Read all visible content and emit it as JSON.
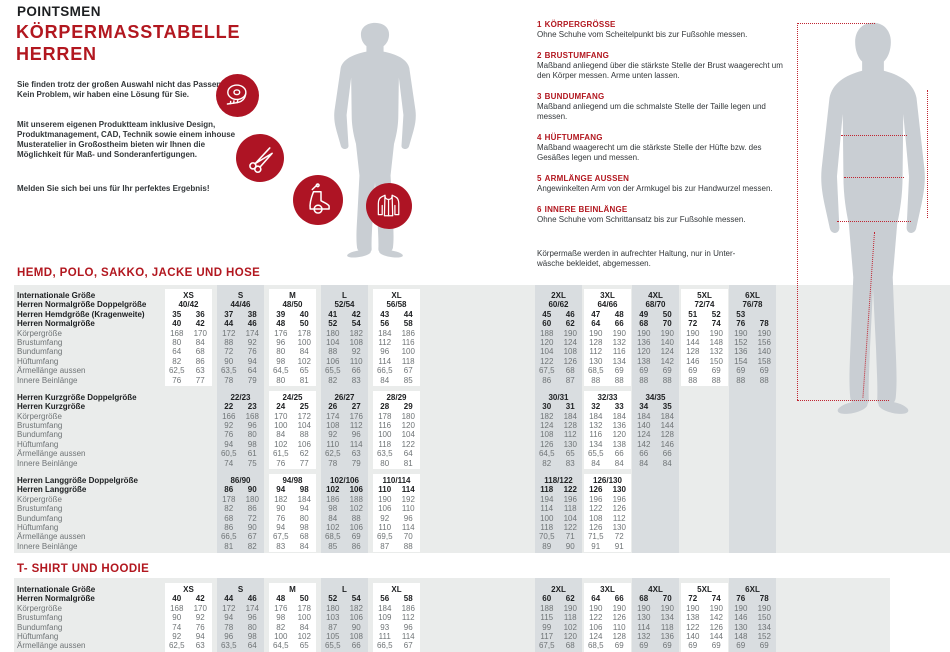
{
  "colors": {
    "accent_red": "#b2171f",
    "circle_red": "#ae1424",
    "table_bg": "#eaeceb",
    "band_shaded": "#d9dde0",
    "band_white": "#ffffff",
    "silhouette_gray": "#c9ced3",
    "text_dark": "#1d1f21",
    "text_gray": "#6f7476"
  },
  "header": {
    "brand": "POINTSMEN",
    "title_line1": "KÖRPERMASSTABELLE",
    "title_line2": "HERREN",
    "intro": [
      "Sie finden trotz der großen Auswahl nicht das Passende? Kein Problem, wir haben eine Lösung für Sie.",
      "Mit unserem eigenen Produktteam inklusive Design, Produktmanagement, CAD, Technik sowie einem inhouse Musteratelier in Großostheim bieten wir Ihnen die Möglichkeit für Maß- und Sonderanfertigungen.",
      "Melden Sie sich bei uns für Ihr perfektes Ergebnis!"
    ],
    "icons": [
      "tape-measure",
      "scissors",
      "custom-shoe",
      "jacket"
    ]
  },
  "instructions": [
    {
      "num": "1",
      "title": "KÖRPERGRÖSSE",
      "text": "Ohne Schuhe vom Scheitelpunkt bis zur Fußsohle messen."
    },
    {
      "num": "2",
      "title": "BRUSTUMFANG",
      "text": "Maßband anliegend über die stärkste Stelle der Brust waagerecht um den Körper messen. Arme unten lassen."
    },
    {
      "num": "3",
      "title": "BUNDUMFANG",
      "text": "Maßband anliegend um die schmalste Stelle der Taille legen und messen."
    },
    {
      "num": "4",
      "title": "HÜFTUMFANG",
      "text": "Maßband waagerecht um die stärkste Stelle der Hüfte bzw. des Gesäßes legen und messen."
    },
    {
      "num": "5",
      "title": "ARMLÄNGE AUSSEN",
      "text": "Angewinkelten Arm von der Armkugel bis zur Handwurzel messen."
    },
    {
      "num": "6",
      "title": "INNERE BEINLÄNGE",
      "text": "Ohne Schuhe vom Schrittansatz bis zur Fußsohle messen."
    }
  ],
  "footnote_line1": "Körpermaße werden in aufrechter Haltung, nur in Unter-",
  "footnote_line2": "wäsche bekleidet, abgemessen.",
  "figure": {
    "markers": [
      "1",
      "2",
      "3",
      "4",
      "5",
      "6"
    ]
  },
  "tables": [
    {
      "title": "HEMD, POLO, SAKKO, JACKE UND HOSE",
      "blocks": [
        {
          "rows": [
            {
              "label": "Internationale Größe",
              "b": 1,
              "t": "g",
              "v": [
                "XS",
                "S",
                "M",
                "L",
                "XL",
                "2XL",
                "3XL",
                "4XL",
                "5XL",
                "6XL"
              ]
            },
            {
              "label": "Herren Normalgröße Doppelgröße",
              "b": 1,
              "t": "g",
              "v": [
                "40/42",
                "44/46",
                "48/50",
                "52/54",
                "56/58",
                "60/62",
                "64/66",
                "68/70",
                "72/74",
                "76/78"
              ]
            },
            {
              "label": "Herren Hemdgröße (Kragenweite)",
              "b": 1,
              "t": "p",
              "v": [
                "35",
                "36",
                "37",
                "38",
                "39",
                "40",
                "41",
                "42",
                "43",
                "44",
                "45",
                "46",
                "47",
                "48",
                "49",
                "50",
                "51",
                "52",
                "53",
                ""
              ]
            },
            {
              "label": "Herren Normalgröße",
              "b": 1,
              "t": "p",
              "v": [
                "40",
                "42",
                "44",
                "46",
                "48",
                "50",
                "52",
                "54",
                "56",
                "58",
                "60",
                "62",
                "64",
                "66",
                "68",
                "70",
                "72",
                "74",
                "76",
                "78"
              ]
            },
            {
              "label": "Körpergröße",
              "t": "p",
              "v": [
                "168",
                "170",
                "172",
                "174",
                "176",
                "178",
                "180",
                "182",
                "184",
                "186",
                "188",
                "190",
                "190",
                "190",
                "190",
                "190",
                "190",
                "190",
                "190",
                "190"
              ]
            },
            {
              "label": "Brustumfang",
              "t": "p",
              "v": [
                "80",
                "84",
                "88",
                "92",
                "96",
                "100",
                "104",
                "108",
                "112",
                "116",
                "120",
                "124",
                "128",
                "132",
                "136",
                "140",
                "144",
                "148",
                "152",
                "156"
              ]
            },
            {
              "label": "Bundumfang",
              "t": "p",
              "v": [
                "64",
                "68",
                "72",
                "76",
                "80",
                "84",
                "88",
                "92",
                "96",
                "100",
                "104",
                "108",
                "112",
                "116",
                "120",
                "124",
                "128",
                "132",
                "136",
                "140"
              ]
            },
            {
              "label": "Hüftumfang",
              "t": "p",
              "v": [
                "82",
                "86",
                "90",
                "94",
                "98",
                "102",
                "106",
                "110",
                "114",
                "118",
                "122",
                "126",
                "130",
                "134",
                "138",
                "142",
                "146",
                "150",
                "154",
                "158"
              ]
            },
            {
              "label": "Ärmellänge aussen",
              "t": "p",
              "v": [
                "62,5",
                "63",
                "63,5",
                "64",
                "64,5",
                "65",
                "65,5",
                "66",
                "66,5",
                "67",
                "67,5",
                "68",
                "68,5",
                "69",
                "69",
                "69",
                "69",
                "69",
                "69",
                "69"
              ]
            },
            {
              "label": "Innere Beinlänge",
              "t": "p",
              "v": [
                "76",
                "77",
                "78",
                "79",
                "80",
                "81",
                "82",
                "83",
                "84",
                "85",
                "86",
                "87",
                "88",
                "88",
                "88",
                "88",
                "88",
                "88",
                "88",
                "88"
              ]
            }
          ]
        },
        {
          "rows": [
            {
              "label": "Herren Kurzgröße Doppelgröße",
              "b": 1,
              "t": "g",
              "s": 1,
              "v": [
                "22/23",
                "24/25",
                "26/27",
                "28/29",
                "30/31",
                "32/33",
                "34/35"
              ]
            },
            {
              "label": "Herren Kurzgröße",
              "b": 1,
              "t": "p",
              "s": 1,
              "v": [
                "22",
                "23",
                "24",
                "25",
                "26",
                "27",
                "28",
                "29",
                "30",
                "31",
                "32",
                "33",
                "34",
                "35"
              ]
            },
            {
              "label": "Körpergröße",
              "t": "p",
              "s": 1,
              "v": [
                "166",
                "168",
                "170",
                "172",
                "174",
                "176",
                "178",
                "180",
                "182",
                "184",
                "184",
                "184",
                "184",
                "184"
              ]
            },
            {
              "label": "Brustumfang",
              "t": "p",
              "s": 1,
              "v": [
                "92",
                "96",
                "100",
                "104",
                "108",
                "112",
                "116",
                "120",
                "124",
                "128",
                "132",
                "136",
                "140",
                "144"
              ]
            },
            {
              "label": "Bundumfang",
              "t": "p",
              "s": 1,
              "v": [
                "76",
                "80",
                "84",
                "88",
                "92",
                "96",
                "100",
                "104",
                "108",
                "112",
                "116",
                "120",
                "124",
                "128"
              ]
            },
            {
              "label": "Hüftumfang",
              "t": "p",
              "s": 1,
              "v": [
                "94",
                "98",
                "102",
                "106",
                "110",
                "114",
                "118",
                "122",
                "126",
                "130",
                "134",
                "138",
                "142",
                "146"
              ]
            },
            {
              "label": "Ärmellänge aussen",
              "t": "p",
              "s": 1,
              "v": [
                "60,5",
                "61",
                "61,5",
                "62",
                "62,5",
                "63",
                "63,5",
                "64",
                "64,5",
                "65",
                "65,5",
                "66",
                "66",
                "66"
              ]
            },
            {
              "label": "Innere Beinlänge",
              "t": "p",
              "s": 1,
              "v": [
                "74",
                "75",
                "76",
                "77",
                "78",
                "79",
                "80",
                "81",
                "82",
                "83",
                "84",
                "84",
                "84",
                "84"
              ]
            }
          ]
        },
        {
          "rows": [
            {
              "label": "Herren Langgröße Doppelgröße",
              "b": 1,
              "t": "g",
              "s": 1,
              "v": [
                "86/90",
                "94/98",
                "102/106",
                "110/114",
                "118/122",
                "126/130"
              ]
            },
            {
              "label": "Herren Langgröße",
              "b": 1,
              "t": "p",
              "s": 1,
              "v": [
                "86",
                "90",
                "94",
                "98",
                "102",
                "106",
                "110",
                "114",
                "118",
                "122",
                "126",
                "130"
              ]
            },
            {
              "label": "Körpergröße",
              "t": "p",
              "s": 1,
              "v": [
                "178",
                "180",
                "182",
                "184",
                "186",
                "188",
                "190",
                "192",
                "194",
                "196",
                "196",
                "196"
              ]
            },
            {
              "label": "Brustumfang",
              "t": "p",
              "s": 1,
              "v": [
                "82",
                "86",
                "90",
                "94",
                "98",
                "102",
                "106",
                "110",
                "114",
                "118",
                "122",
                "126"
              ]
            },
            {
              "label": "Bundumfang",
              "t": "p",
              "s": 1,
              "v": [
                "68",
                "72",
                "76",
                "80",
                "84",
                "88",
                "92",
                "96",
                "100",
                "104",
                "108",
                "112"
              ]
            },
            {
              "label": "Hüftumfang",
              "t": "p",
              "s": 1,
              "v": [
                "86",
                "90",
                "94",
                "98",
                "102",
                "106",
                "110",
                "114",
                "118",
                "122",
                "126",
                "130"
              ]
            },
            {
              "label": "Ärmellänge aussen",
              "t": "p",
              "s": 1,
              "v": [
                "66,5",
                "67",
                "67,5",
                "68",
                "68,5",
                "69",
                "69,5",
                "70",
                "70,5",
                "71",
                "71,5",
                "72"
              ]
            },
            {
              "label": "Innere Beinlänge",
              "t": "p",
              "s": 1,
              "v": [
                "81",
                "82",
                "83",
                "84",
                "85",
                "86",
                "87",
                "88",
                "89",
                "90",
                "91",
                "91"
              ]
            }
          ]
        }
      ]
    },
    {
      "title": "T- SHIRT UND HOODIE",
      "blocks": [
        {
          "rows": [
            {
              "label": "Internationale Größe",
              "b": 1,
              "t": "g",
              "v": [
                "XS",
                "S",
                "M",
                "L",
                "XL",
                "2XL",
                "3XL",
                "4XL",
                "5XL",
                "6XL"
              ]
            },
            {
              "label": "Herren Normalgröße",
              "b": 1,
              "t": "p",
              "v": [
                "40",
                "42",
                "44",
                "46",
                "48",
                "50",
                "52",
                "54",
                "56",
                "58",
                "60",
                "62",
                "64",
                "66",
                "68",
                "70",
                "72",
                "74",
                "76",
                "78"
              ]
            },
            {
              "label": "Körpergröße",
              "t": "p",
              "v": [
                "168",
                "170",
                "172",
                "174",
                "176",
                "178",
                "180",
                "182",
                "184",
                "186",
                "188",
                "190",
                "190",
                "190",
                "190",
                "190",
                "190",
                "190",
                "190",
                "190"
              ]
            },
            {
              "label": "Brustumfang",
              "t": "p",
              "v": [
                "90",
                "92",
                "94",
                "96",
                "98",
                "100",
                "103",
                "106",
                "109",
                "112",
                "115",
                "118",
                "122",
                "126",
                "130",
                "134",
                "138",
                "142",
                "146",
                "150"
              ]
            },
            {
              "label": "Bundumfang",
              "t": "p",
              "v": [
                "74",
                "76",
                "78",
                "80",
                "82",
                "84",
                "87",
                "90",
                "93",
                "96",
                "99",
                "102",
                "106",
                "110",
                "114",
                "118",
                "122",
                "126",
                "130",
                "134"
              ]
            },
            {
              "label": "Hüftumfang",
              "t": "p",
              "v": [
                "92",
                "94",
                "96",
                "98",
                "100",
                "102",
                "105",
                "108",
                "111",
                "114",
                "117",
                "120",
                "124",
                "128",
                "132",
                "136",
                "140",
                "144",
                "148",
                "152"
              ]
            },
            {
              "label": "Ärmellänge aussen",
              "t": "p",
              "v": [
                "62,5",
                "63",
                "63,5",
                "64",
                "64,5",
                "65",
                "65,5",
                "66",
                "66,5",
                "67",
                "67,5",
                "68",
                "68,5",
                "69",
                "69",
                "69",
                "69",
                "69",
                "69",
                "69"
              ]
            }
          ]
        }
      ]
    }
  ]
}
